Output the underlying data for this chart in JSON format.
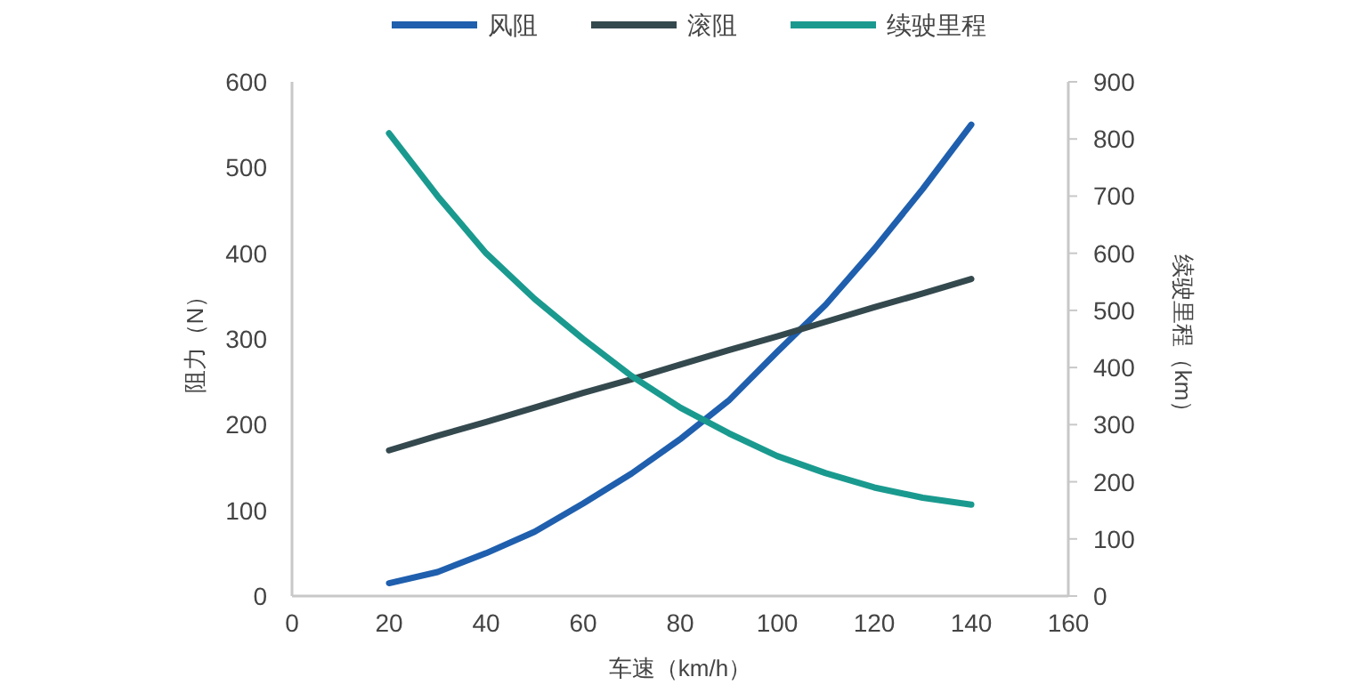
{
  "chart_data": {
    "type": "line",
    "xlabel": "车速（km/h）",
    "ylabel": "阻力（N）",
    "y2label": "续驶里程（km）",
    "x": [
      20,
      30,
      40,
      50,
      60,
      70,
      80,
      90,
      100,
      110,
      120,
      130,
      140
    ],
    "xlim": [
      0,
      160
    ],
    "xticks": [
      0,
      20,
      40,
      60,
      80,
      100,
      120,
      140,
      160
    ],
    "ylim": [
      0,
      600
    ],
    "yticks": [
      0,
      100,
      200,
      300,
      400,
      500,
      600
    ],
    "y2lim": [
      0,
      900
    ],
    "y2ticks": [
      0,
      100,
      200,
      300,
      400,
      500,
      600,
      700,
      800,
      900
    ],
    "grid": false,
    "legend": "top",
    "marker": "none",
    "line_style": "solid",
    "series": [
      {
        "name": "风阻",
        "color": "#1f5fae",
        "values": [
          15,
          28,
          50,
          75,
          108,
          143,
          183,
          228,
          285,
          340,
          405,
          475,
          550
        ]
      },
      {
        "name": "滚阻",
        "color": "#34494e",
        "values": [
          170,
          187,
          203,
          220,
          237,
          253,
          270,
          287,
          303,
          320,
          337,
          353,
          370
        ]
      },
      {
        "name": "续驶里程",
        "color": "#1a9a8f",
        "axis": "y2",
        "values": [
          810,
          700,
          600,
          520,
          450,
          385,
          330,
          285,
          245,
          215,
          190,
          172,
          160
        ]
      }
    ]
  }
}
